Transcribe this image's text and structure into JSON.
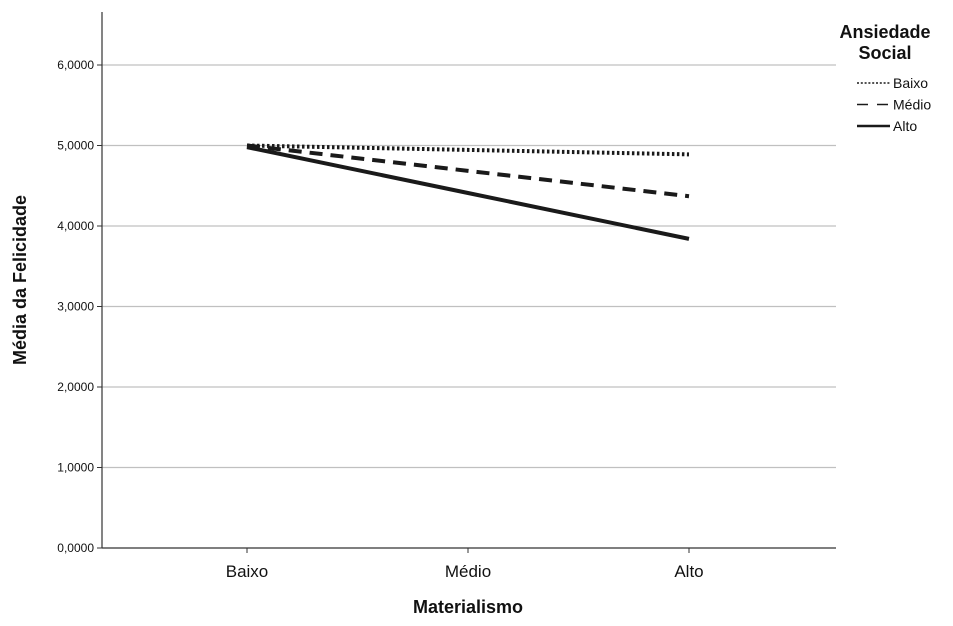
{
  "chart_data": {
    "type": "line",
    "categories": [
      "Baixo",
      "Médio",
      "Alto"
    ],
    "series": [
      {
        "name": "Baixo",
        "values": [
          5.0,
          4.945,
          4.89
        ],
        "style": "dotted",
        "color": "#1a1a1a"
      },
      {
        "name": "Médio",
        "values": [
          5.0,
          4.685,
          4.37
        ],
        "style": "dashed",
        "color": "#1a1a1a"
      },
      {
        "name": "Alto",
        "values": [
          4.98,
          4.41,
          3.84
        ],
        "style": "solid",
        "color": "#1a1a1a"
      }
    ],
    "title": "",
    "xlabel": "Materialismo",
    "ylabel": "Média da Felicidade",
    "ylim": [
      0,
      6.5
    ],
    "yticks": [
      0,
      1,
      2,
      3,
      4,
      5,
      6
    ],
    "ytick_labels": [
      "0,0000",
      "1,0000",
      "2,0000",
      "3,0000",
      "4,0000",
      "5,0000",
      "6,0000"
    ],
    "grid": "horizontal",
    "gridline_color": "#c0c0c0",
    "legend": {
      "title_lines": [
        "Ansiedade",
        "Social"
      ],
      "placement": "top-right outside"
    }
  }
}
